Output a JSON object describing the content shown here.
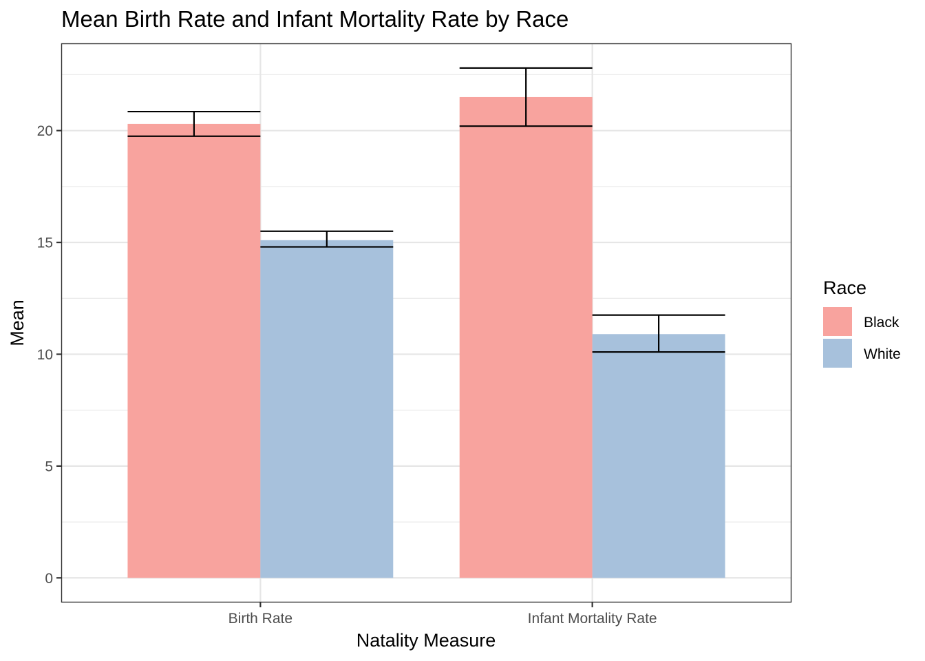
{
  "chart_data": {
    "type": "bar",
    "title": "Mean Birth Rate and Infant Mortality Rate by Race",
    "xlabel": "Natality Measure",
    "ylabel": "Mean",
    "categories": [
      "Birth Rate",
      "Infant Mortality Rate"
    ],
    "series": [
      {
        "name": "Black",
        "color": "#F8A39E",
        "values": [
          20.3,
          21.5
        ],
        "error_low": [
          19.75,
          20.2
        ],
        "error_high": [
          20.85,
          22.8
        ]
      },
      {
        "name": "White",
        "color": "#A7C1DC",
        "values": [
          15.1,
          10.9
        ],
        "error_low": [
          14.8,
          10.1
        ],
        "error_high": [
          15.5,
          11.75
        ]
      }
    ],
    "ylim": [
      -1.1,
      23.9
    ],
    "yticks": [
      0,
      5,
      10,
      15,
      20
    ],
    "legend_title": "Race",
    "legend_position": "right",
    "grid": true
  }
}
